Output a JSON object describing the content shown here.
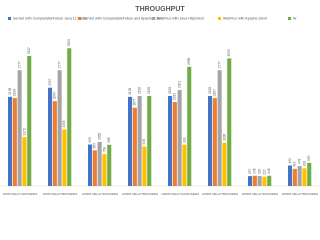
{
  "chart_data": {
    "type": "bar",
    "title": "THROUGHPUT",
    "categories": [
      "10MS DELAY/400USERS",
      "10MS DELAY/800USERS",
      "100MS DELAY/400USERS",
      "100MS DELAY/800USERS",
      "100MS DELAY/1000USERS",
      "100MS DELAY/800USERS",
      "500MS DELAY/400USERS",
      "500MS DELAY/800USERS"
    ],
    "series": [
      {
        "name": "Servlet with CompletableFuture Java 11 Client",
        "color": "#4472c4",
        "values": [
          2138,
          2357,
          995,
          2138,
          2158,
          2158,
          237,
          492
        ]
      },
      {
        "name": "Servlet with CompletableFuture and Apache Client",
        "color": "#ed7d31",
        "values": [
          2108,
          2034,
          855,
          1877,
          2013,
          2107,
          246,
          411
        ]
      },
      {
        "name": "WebFlux with Java HttpClient",
        "color": "#a5a5a5",
        "values": [
          2777,
          2777,
          1058,
          2158,
          2301,
          2777,
          239,
          478
        ]
      },
      {
        "name": "WebFlux with Apache client",
        "color": "#ffc000",
        "values": [
          1173,
          1355,
          764,
          948,
          991,
          1036,
          222,
          426
        ]
      },
      {
        "name": "W",
        "color": "#70ad47",
        "values": [
          3117,
          3303,
          988,
          2158,
          2858,
          3059,
          246,
          555
        ]
      }
    ]
  }
}
